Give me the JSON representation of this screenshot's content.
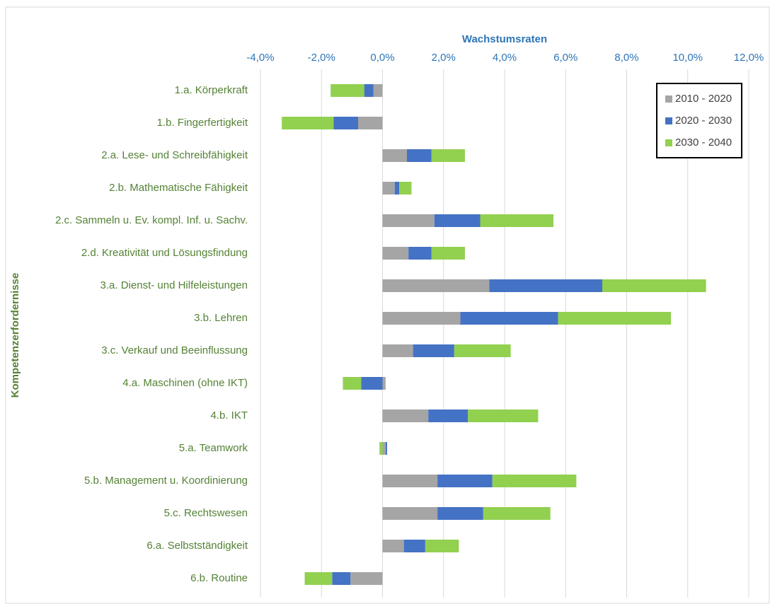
{
  "chart_data": {
    "type": "stacked-barh",
    "xlabel": "Wachstumsraten",
    "ylabel": "Kompetenzerfordernisse",
    "categories": [
      "1.a. Körperkraft",
      "1.b. Fingerfertigkeit",
      "2.a. Lese- und Schreibfähigkeit",
      "2.b. Mathematische Fähigkeit",
      "2.c. Sammeln u. Ev. kompl. Inf. u. Sachv.",
      "2.d. Kreativität und Lösungsfindung",
      "3.a. Dienst- und Hilfeleistungen",
      "3.b. Lehren",
      "3.c. Verkauf und Beeinflussung",
      "4.a. Maschinen (ohne IKT)",
      "4.b. IKT",
      "5.a. Teamwork",
      "5.b. Management u. Koordinierung",
      "5.c. Rechtswesen",
      "6.a. Selbstständigkeit",
      "6.b. Routine"
    ],
    "series": [
      {
        "name": "2010 - 2020",
        "color": "#a5a5a5",
        "values": [
          -0.3,
          -0.8,
          0.8,
          0.4,
          1.7,
          0.85,
          3.5,
          2.55,
          1.0,
          0.1,
          1.5,
          0.1,
          1.8,
          1.8,
          0.7,
          -1.05
        ]
      },
      {
        "name": "2020 - 2030",
        "color": "#4472c4",
        "values": [
          -0.3,
          -0.8,
          0.8,
          0.15,
          1.5,
          0.75,
          3.7,
          3.2,
          1.35,
          -0.7,
          1.3,
          0.05,
          1.8,
          1.5,
          0.7,
          -0.6
        ]
      },
      {
        "name": "2030 - 2040",
        "color": "#92d050",
        "values": [
          -1.1,
          -1.7,
          1.1,
          0.4,
          2.4,
          1.1,
          3.4,
          3.7,
          1.85,
          -0.6,
          2.3,
          -0.1,
          2.75,
          2.2,
          1.1,
          -0.9
        ]
      }
    ],
    "xlim": [
      -4,
      12
    ],
    "xticks": [
      {
        "value": -4,
        "label": "-4,0%"
      },
      {
        "value": -2,
        "label": "-2,0%"
      },
      {
        "value": 0,
        "label": "0,0%"
      },
      {
        "value": 2,
        "label": "2,0%"
      },
      {
        "value": 4,
        "label": "4,0%"
      },
      {
        "value": 6,
        "label": "6,0%"
      },
      {
        "value": 8,
        "label": "8,0%"
      },
      {
        "value": 10,
        "label": "10,0%"
      },
      {
        "value": 12,
        "label": "12,0%"
      }
    ],
    "grid": true,
    "legend": "upper right"
  }
}
